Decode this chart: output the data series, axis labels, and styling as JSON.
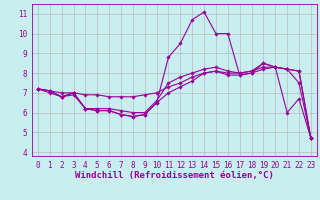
{
  "background_color": "#c8eef0",
  "grid_color": "#b0b0b0",
  "line_color": "#990099",
  "marker": "D",
  "markersize": 1.8,
  "linewidth": 0.8,
  "xlabel": "Windchill (Refroidissement éolien,°C)",
  "xlabel_fontsize": 6.5,
  "tick_fontsize": 5.5,
  "ylim": [
    3.8,
    11.5
  ],
  "xlim": [
    -0.5,
    23.5
  ],
  "yticks": [
    4,
    5,
    6,
    7,
    8,
    9,
    10,
    11
  ],
  "xticks": [
    0,
    1,
    2,
    3,
    4,
    5,
    6,
    7,
    8,
    9,
    10,
    11,
    12,
    13,
    14,
    15,
    16,
    17,
    18,
    19,
    20,
    21,
    22,
    23
  ],
  "series": [
    [
      7.2,
      7.1,
      6.8,
      7.0,
      6.2,
      6.1,
      6.1,
      5.9,
      5.8,
      5.9,
      6.5,
      8.8,
      9.5,
      10.7,
      11.1,
      10.0,
      10.0,
      7.9,
      8.0,
      8.5,
      8.3,
      6.0,
      6.7,
      4.7
    ],
    [
      7.2,
      7.1,
      6.8,
      7.0,
      6.2,
      6.2,
      6.2,
      6.1,
      6.0,
      6.0,
      6.6,
      7.5,
      7.8,
      8.0,
      8.2,
      8.3,
      8.1,
      8.0,
      8.1,
      8.5,
      8.3,
      8.2,
      8.1,
      4.7
    ],
    [
      7.2,
      7.1,
      7.0,
      7.0,
      6.9,
      6.9,
      6.8,
      6.8,
      6.8,
      6.9,
      7.0,
      7.3,
      7.5,
      7.8,
      8.0,
      8.1,
      8.0,
      8.0,
      8.1,
      8.3,
      8.3,
      8.2,
      8.1,
      4.7
    ],
    [
      7.2,
      7.0,
      6.8,
      6.9,
      6.2,
      6.1,
      6.1,
      5.9,
      5.8,
      5.9,
      6.5,
      7.0,
      7.3,
      7.6,
      8.0,
      8.1,
      7.9,
      7.9,
      8.0,
      8.2,
      8.3,
      8.2,
      7.5,
      4.7
    ]
  ]
}
